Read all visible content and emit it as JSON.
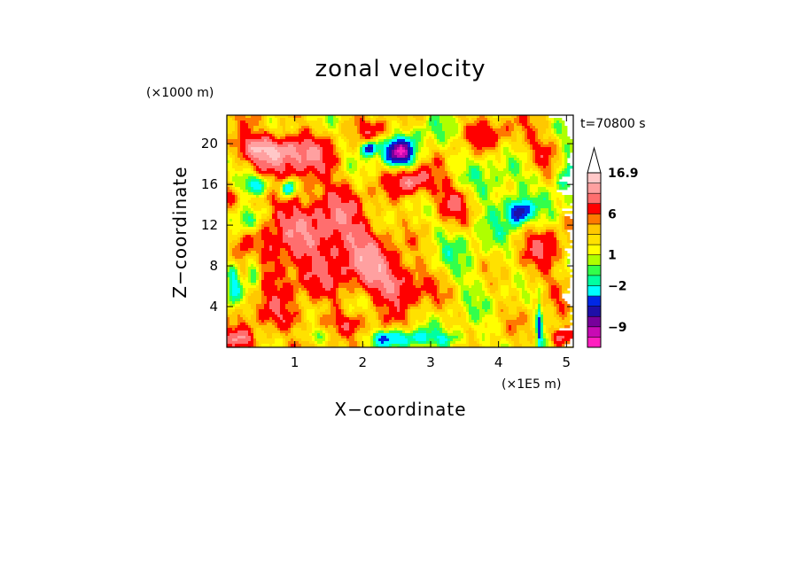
{
  "chart_data": {
    "type": "heatmap",
    "title": "zonal velocity",
    "xlabel": "X−coordinate",
    "ylabel": "Z−coordinate",
    "x_unit": "(×1E5 m)",
    "y_unit": "(×1000 m)",
    "time_label": "t=70800 s",
    "xlim": [
      0,
      5.1
    ],
    "ylim": [
      0,
      22.8
    ],
    "x_ticks": [
      1,
      2,
      3,
      4,
      5
    ],
    "y_ticks": [
      4,
      8,
      12,
      16,
      20
    ],
    "colorbar": {
      "levels": [
        -13,
        -11,
        -9,
        -7,
        -5,
        -3,
        -2,
        -1,
        0,
        1,
        2,
        3,
        4,
        6,
        8,
        10,
        13,
        16.9
      ],
      "colors": [
        "#ff1fc0",
        "#c80ab4",
        "#78009b",
        "#1e0fa8",
        "#0028e6",
        "#00ffff",
        "#00ffa0",
        "#32ff4b",
        "#afff00",
        "#ffff00",
        "#ffe100",
        "#ffc800",
        "#ff7800",
        "#ff0000",
        "#ff6e6e",
        "#ffa0a0",
        "#ffc8c8",
        "#ffffff"
      ],
      "labeled_values": [
        "16.9",
        "6",
        "1",
        "−2",
        "−9"
      ],
      "extend": "max"
    },
    "features": [
      {
        "x": 0.8,
        "z": 10,
        "sx": 0.75,
        "sz": 9,
        "value": 4
      },
      {
        "x": 1.65,
        "z": 11,
        "sx": 0.55,
        "sz": 4.5,
        "value": 5
      },
      {
        "x": 2.55,
        "z": 6.2,
        "sx": 0.45,
        "sz": 2.2,
        "value": 6
      },
      {
        "x": 2.15,
        "z": 8.5,
        "sx": 0.35,
        "sz": 3,
        "value": 4
      },
      {
        "x": 2.75,
        "z": 16.3,
        "sx": 0.3,
        "sz": 1.4,
        "value": 7
      },
      {
        "x": 3.3,
        "z": 14.2,
        "sx": 0.3,
        "sz": 1.8,
        "value": 5
      },
      {
        "x": 0.55,
        "z": 19.5,
        "sx": 0.45,
        "sz": 1.3,
        "value": 7
      },
      {
        "x": 1.1,
        "z": 18.7,
        "sx": 0.55,
        "sz": 2,
        "value": 4
      },
      {
        "x": 2.25,
        "z": 21.3,
        "sx": 0.3,
        "sz": 1.1,
        "value": 4
      },
      {
        "x": 0.45,
        "z": 16,
        "sx": 0.28,
        "sz": 1.1,
        "value": -7
      },
      {
        "x": 0.9,
        "z": 15.6,
        "sx": 0.1,
        "sz": 0.9,
        "value": -9
      },
      {
        "x": 0.25,
        "z": 12.5,
        "sx": 0.22,
        "sz": 1.4,
        "value": -5
      },
      {
        "x": 0.4,
        "z": 8,
        "sx": 0.12,
        "sz": 2,
        "value": -6
      },
      {
        "x": 0.1,
        "z": 6,
        "sx": 0.1,
        "sz": 2.5,
        "value": -5
      },
      {
        "x": 2.55,
        "z": 19.1,
        "sx": 0.2,
        "sz": 1.2,
        "value": -11
      },
      {
        "x": 2.1,
        "z": 19.5,
        "sx": 0.1,
        "sz": 0.6,
        "value": -9
      },
      {
        "x": 2.35,
        "z": 19.6,
        "sx": 0.5,
        "sz": 2.2,
        "value": -2
      },
      {
        "x": 4.3,
        "z": 13.3,
        "sx": 0.16,
        "sz": 1.1,
        "value": -9
      },
      {
        "x": 4.1,
        "z": 15.5,
        "sx": 0.5,
        "sz": 4,
        "value": -2.5
      },
      {
        "x": 5.0,
        "z": 17,
        "sx": 0.2,
        "sz": 2,
        "value": -5
      },
      {
        "x": 4.6,
        "z": 2,
        "sx": 0.04,
        "sz": 3,
        "value": -6
      },
      {
        "x": 2.5,
        "z": 0.9,
        "sx": 0.45,
        "sz": 0.8,
        "value": -6
      },
      {
        "x": 3.35,
        "z": 0.8,
        "sx": 0.3,
        "sz": 0.8,
        "value": -3
      },
      {
        "x": 1.3,
        "z": 1.2,
        "sx": 0.35,
        "sz": 0.8,
        "value": -2
      },
      {
        "x": 1.7,
        "z": 2.2,
        "sx": 0.6,
        "sz": 1.2,
        "value": 2.5
      },
      {
        "x": 4.9,
        "z": 1.0,
        "sx": 0.15,
        "sz": 1.0,
        "value": 7
      },
      {
        "x": 0.2,
        "z": 0.8,
        "sx": 0.25,
        "sz": 0.9,
        "value": 5
      },
      {
        "x": 3.3,
        "z": 10.5,
        "sx": 0.6,
        "sz": 3.5,
        "value": -1
      },
      {
        "x": 3.6,
        "z": 7,
        "sx": 0.45,
        "sz": 3,
        "value": -1
      },
      {
        "x": 4.6,
        "z": 7,
        "sx": 0.5,
        "sz": 3,
        "value": 1.5
      },
      {
        "x": 4.7,
        "z": 10,
        "sx": 0.3,
        "sz": 2,
        "value": 3.5
      },
      {
        "x": 3.0,
        "z": 21,
        "sx": 0.35,
        "sz": 1.5,
        "value": -1.5
      },
      {
        "x": 3.9,
        "z": 21,
        "sx": 0.5,
        "sz": 1.8,
        "value": 3
      },
      {
        "x": 4.6,
        "z": 19,
        "sx": 0.35,
        "sz": 1.8,
        "value": 3.5
      },
      {
        "x": 1.1,
        "z": 4.2,
        "sx": 0.35,
        "sz": 1.5,
        "value": -1
      },
      {
        "x": 0.7,
        "z": 3,
        "sx": 0.3,
        "sz": 1.2,
        "value": 1
      }
    ]
  }
}
